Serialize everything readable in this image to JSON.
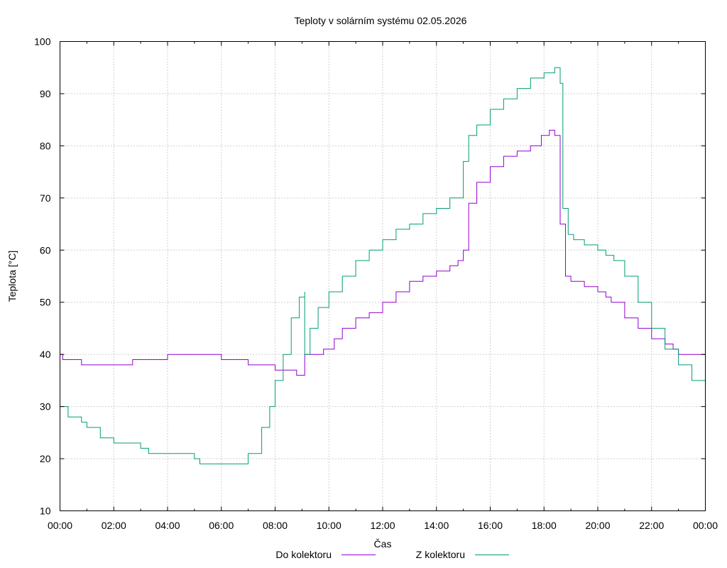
{
  "chart_data": {
    "type": "line",
    "title": "Teploty v solárním systému 02.05.2026",
    "xlabel": "Čas",
    "ylabel": "Teplota [°C]",
    "ylim": [
      10,
      100
    ],
    "xlim": [
      0,
      24
    ],
    "y_ticks": [
      10,
      20,
      30,
      40,
      50,
      60,
      70,
      80,
      90,
      100
    ],
    "x_ticks": [
      {
        "h": 0,
        "label": "00:00"
      },
      {
        "h": 2,
        "label": "02:00"
      },
      {
        "h": 4,
        "label": "04:00"
      },
      {
        "h": 6,
        "label": "06:00"
      },
      {
        "h": 8,
        "label": "08:00"
      },
      {
        "h": 10,
        "label": "10:00"
      },
      {
        "h": 12,
        "label": "12:00"
      },
      {
        "h": 14,
        "label": "14:00"
      },
      {
        "h": 16,
        "label": "16:00"
      },
      {
        "h": 18,
        "label": "18:00"
      },
      {
        "h": 20,
        "label": "20:00"
      },
      {
        "h": 22,
        "label": "22:00"
      },
      {
        "h": 24,
        "label": "00:00"
      }
    ],
    "grid": true,
    "legend_position": "bottom-center",
    "series": [
      {
        "name": "Do kolektoru",
        "color": "#9400d3",
        "x": [
          0,
          0.1,
          0.8,
          0.8,
          2.7,
          2.7,
          4.0,
          4.0,
          6.0,
          6.0,
          7.0,
          7.0,
          8.0,
          8.0,
          8.8,
          8.8,
          9.1,
          9.1,
          9.6,
          9.8,
          10.2,
          10.5,
          11.0,
          11.5,
          12.0,
          12.5,
          13.0,
          13.5,
          14.0,
          14.5,
          14.8,
          15.0,
          15.2,
          15.5,
          16.0,
          16.5,
          17.0,
          17.5,
          17.9,
          18.2,
          18.4,
          18.6,
          18.8,
          19.0,
          19.5,
          20.0,
          20.3,
          20.5,
          21.0,
          21.5,
          22.0,
          22.5,
          22.8,
          23.0,
          24.0
        ],
        "y": [
          40,
          39,
          39,
          38,
          38,
          39,
          39,
          40,
          40,
          39,
          39,
          38,
          38,
          37,
          37,
          36,
          36,
          40,
          40,
          41,
          43,
          45,
          47,
          48,
          50,
          52,
          54,
          55,
          56,
          57,
          58,
          60,
          69,
          73,
          76,
          78,
          79,
          80,
          82,
          83,
          82,
          65,
          55,
          54,
          53,
          52,
          51,
          50,
          47,
          45,
          43,
          42,
          41,
          40,
          40
        ]
      },
      {
        "name": "Z kolektoru",
        "color": "#009e73",
        "x": [
          0,
          0.3,
          0.8,
          1.0,
          1.5,
          2.0,
          2.7,
          3.0,
          3.3,
          4.0,
          5.0,
          5.2,
          6.0,
          6.5,
          7.0,
          7.5,
          7.8,
          8.0,
          8.3,
          8.6,
          8.9,
          9.1,
          9.1,
          9.3,
          9.6,
          10.0,
          10.5,
          11.0,
          11.5,
          12.0,
          12.5,
          13.0,
          13.5,
          14.0,
          14.5,
          15.0,
          15.2,
          15.5,
          16.0,
          16.5,
          17.0,
          17.5,
          18.0,
          18.4,
          18.6,
          18.7,
          18.9,
          19.1,
          19.5,
          20.0,
          20.3,
          20.6,
          21.0,
          21.5,
          22.0,
          22.5,
          23.0,
          23.5,
          24.0
        ],
        "y": [
          30,
          28,
          27,
          26,
          24,
          23,
          23,
          22,
          21,
          21,
          20,
          19,
          19,
          19,
          21,
          26,
          30,
          35,
          40,
          47,
          51,
          52,
          40,
          45,
          49,
          52,
          55,
          58,
          60,
          62,
          64,
          65,
          67,
          68,
          70,
          77,
          82,
          84,
          87,
          89,
          91,
          93,
          94,
          95,
          92,
          68,
          63,
          62,
          61,
          60,
          59,
          58,
          55,
          50,
          45,
          41,
          38,
          35,
          33
        ]
      }
    ]
  }
}
